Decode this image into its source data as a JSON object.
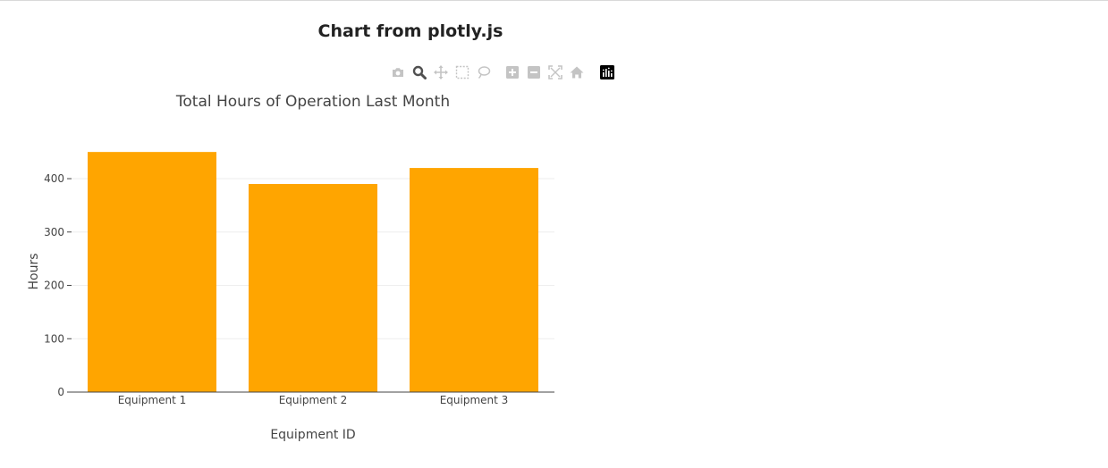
{
  "page": {
    "heading": "Chart from plotly.js"
  },
  "modebar": {
    "buttons": [
      {
        "name": "camera-icon",
        "active": false
      },
      {
        "name": "zoom-icon",
        "active": true
      },
      {
        "name": "pan-icon",
        "active": false
      },
      {
        "name": "box-select-icon",
        "active": false
      },
      {
        "name": "lasso-select-icon",
        "active": false
      },
      {
        "name": "zoom-in-icon",
        "active": false
      },
      {
        "name": "zoom-out-icon",
        "active": false
      },
      {
        "name": "autoscale-icon",
        "active": false
      },
      {
        "name": "reset-axes-icon",
        "active": false
      },
      {
        "name": "plotly-logo-icon",
        "active": false
      }
    ],
    "colors": {
      "inactive": "#c4c4c4",
      "active": "#505050",
      "logo": "#000000"
    }
  },
  "chart_data": {
    "type": "bar",
    "title": "Total Hours of Operation Last Month",
    "xlabel": "Equipment ID",
    "ylabel": "Hours",
    "categories": [
      "Equipment 1",
      "Equipment 2",
      "Equipment 3"
    ],
    "values": [
      450,
      390,
      420
    ],
    "ylim": [
      0,
      473.7
    ],
    "yticks": [
      0,
      100,
      200,
      300,
      400
    ],
    "grid": true,
    "bar_color": "#ffa500",
    "grid_color": "#eeeeee",
    "axis_color": "#444444"
  }
}
